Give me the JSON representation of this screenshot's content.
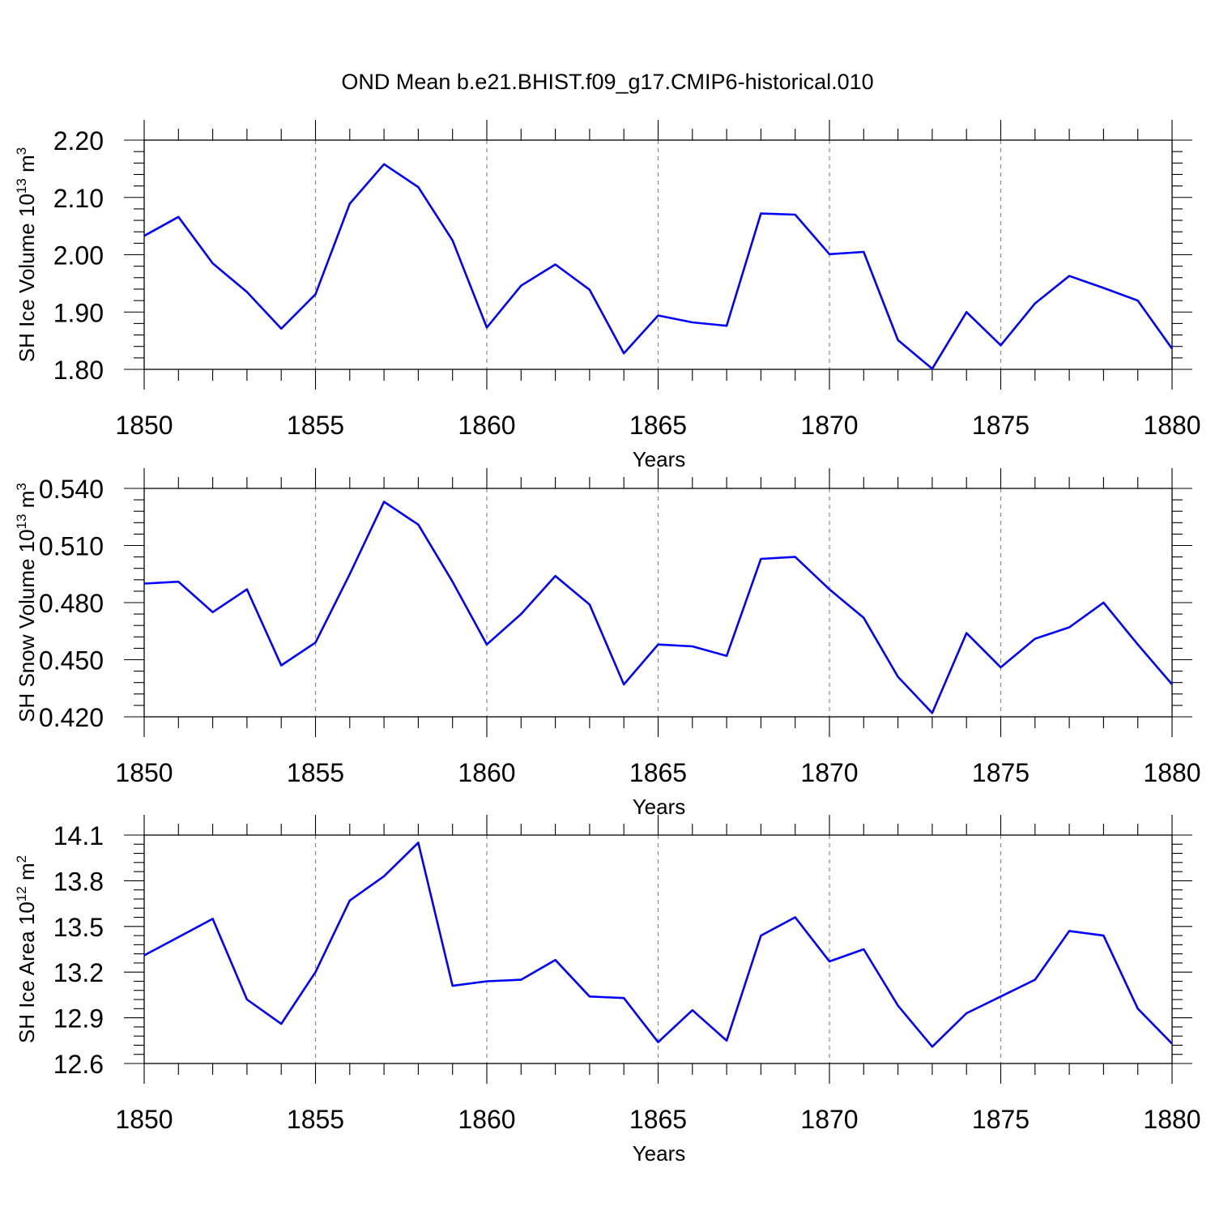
{
  "figure": {
    "title": "OND Mean b.e21.BHIST.f09_g17.CMIP6-historical.010"
  },
  "chart_data": [
    {
      "type": "line",
      "ylabel": "SH Ice Volume 10",
      "ylabel_exp": "13",
      "ylabel_unit": "m",
      "ylabel_unit_exp": "3",
      "xlabel": "Years",
      "xlim": [
        1850,
        1880
      ],
      "ylim": [
        1.8,
        2.2
      ],
      "yticks": [
        1.8,
        1.9,
        2.0,
        2.1,
        2.2
      ],
      "ytick_labels": [
        "1.80",
        "1.90",
        "2.00",
        "2.10",
        "2.20"
      ],
      "xticks": [
        1850,
        1855,
        1860,
        1865,
        1870,
        1875,
        1880
      ],
      "xtick_labels": [
        "1850",
        "1855",
        "1860",
        "1865",
        "1870",
        "1875",
        "1880"
      ],
      "grid": "vertical dashed at major x ticks",
      "color": "#0000ff",
      "x": [
        1850,
        1851,
        1852,
        1853,
        1854,
        1855,
        1856,
        1857,
        1858,
        1859,
        1860,
        1861,
        1862,
        1863,
        1864,
        1865,
        1866,
        1867,
        1868,
        1869,
        1870,
        1871,
        1872,
        1873,
        1874,
        1875,
        1876,
        1877,
        1878,
        1879,
        1880
      ],
      "y": [
        2.033,
        2.066,
        1.985,
        1.935,
        1.871,
        1.931,
        2.089,
        2.158,
        2.118,
        2.025,
        1.873,
        1.946,
        1.983,
        1.939,
        1.828,
        1.894,
        1.882,
        1.876,
        2.072,
        2.07,
        2.001,
        2.005,
        1.851,
        1.801,
        1.9,
        1.842,
        1.915,
        1.963,
        1.942,
        1.92,
        1.836
      ]
    },
    {
      "type": "line",
      "ylabel": "SH Snow Volume 10",
      "ylabel_exp": "13",
      "ylabel_unit": "m",
      "ylabel_unit_exp": "3",
      "xlabel": "Years",
      "xlim": [
        1850,
        1880
      ],
      "ylim": [
        0.42,
        0.54
      ],
      "yticks": [
        0.42,
        0.45,
        0.48,
        0.51,
        0.54
      ],
      "ytick_labels": [
        "0.420",
        "0.450",
        "0.480",
        "0.510",
        "0.540"
      ],
      "xticks": [
        1850,
        1855,
        1860,
        1865,
        1870,
        1875,
        1880
      ],
      "xtick_labels": [
        "1850",
        "1855",
        "1860",
        "1865",
        "1870",
        "1875",
        "1880"
      ],
      "grid": "vertical dashed at major x ticks",
      "color": "#0000ff",
      "x": [
        1850,
        1851,
        1852,
        1853,
        1854,
        1855,
        1856,
        1857,
        1858,
        1859,
        1860,
        1861,
        1862,
        1863,
        1864,
        1865,
        1866,
        1867,
        1868,
        1869,
        1870,
        1871,
        1872,
        1873,
        1874,
        1875,
        1876,
        1877,
        1878,
        1879,
        1880
      ],
      "y": [
        0.49,
        0.491,
        0.475,
        0.487,
        0.447,
        0.459,
        0.495,
        0.533,
        0.521,
        0.491,
        0.458,
        0.474,
        0.494,
        0.479,
        0.437,
        0.458,
        0.457,
        0.452,
        0.503,
        0.504,
        0.487,
        0.472,
        0.441,
        0.422,
        0.464,
        0.446,
        0.461,
        0.467,
        0.48,
        0.458,
        0.437
      ]
    },
    {
      "type": "line",
      "ylabel": "SH Ice Area 10",
      "ylabel_exp": "12",
      "ylabel_unit": "m",
      "ylabel_unit_exp": "2",
      "xlabel": "Years",
      "xlim": [
        1850,
        1880
      ],
      "ylim": [
        12.6,
        14.1
      ],
      "yticks": [
        12.6,
        12.9,
        13.2,
        13.5,
        13.8,
        14.1
      ],
      "ytick_labels": [
        "12.6",
        "12.9",
        "13.2",
        "13.5",
        "13.8",
        "14.1"
      ],
      "xticks": [
        1850,
        1855,
        1860,
        1865,
        1870,
        1875,
        1880
      ],
      "xtick_labels": [
        "1850",
        "1855",
        "1860",
        "1865",
        "1870",
        "1875",
        "1880"
      ],
      "grid": "vertical dashed at major x ticks",
      "color": "#0000ff",
      "x": [
        1850,
        1851,
        1852,
        1853,
        1854,
        1855,
        1856,
        1857,
        1858,
        1859,
        1860,
        1861,
        1862,
        1863,
        1864,
        1865,
        1866,
        1867,
        1868,
        1869,
        1870,
        1871,
        1872,
        1873,
        1874,
        1875,
        1876,
        1877,
        1878,
        1879,
        1880
      ],
      "y": [
        13.31,
        13.43,
        13.55,
        13.02,
        12.86,
        13.2,
        13.67,
        13.83,
        14.05,
        13.11,
        13.14,
        13.15,
        13.28,
        13.04,
        13.03,
        12.74,
        12.95,
        12.75,
        13.44,
        13.56,
        13.27,
        13.35,
        12.98,
        12.71,
        12.93,
        13.04,
        13.15,
        13.47,
        13.44,
        12.96,
        12.73
      ]
    }
  ]
}
